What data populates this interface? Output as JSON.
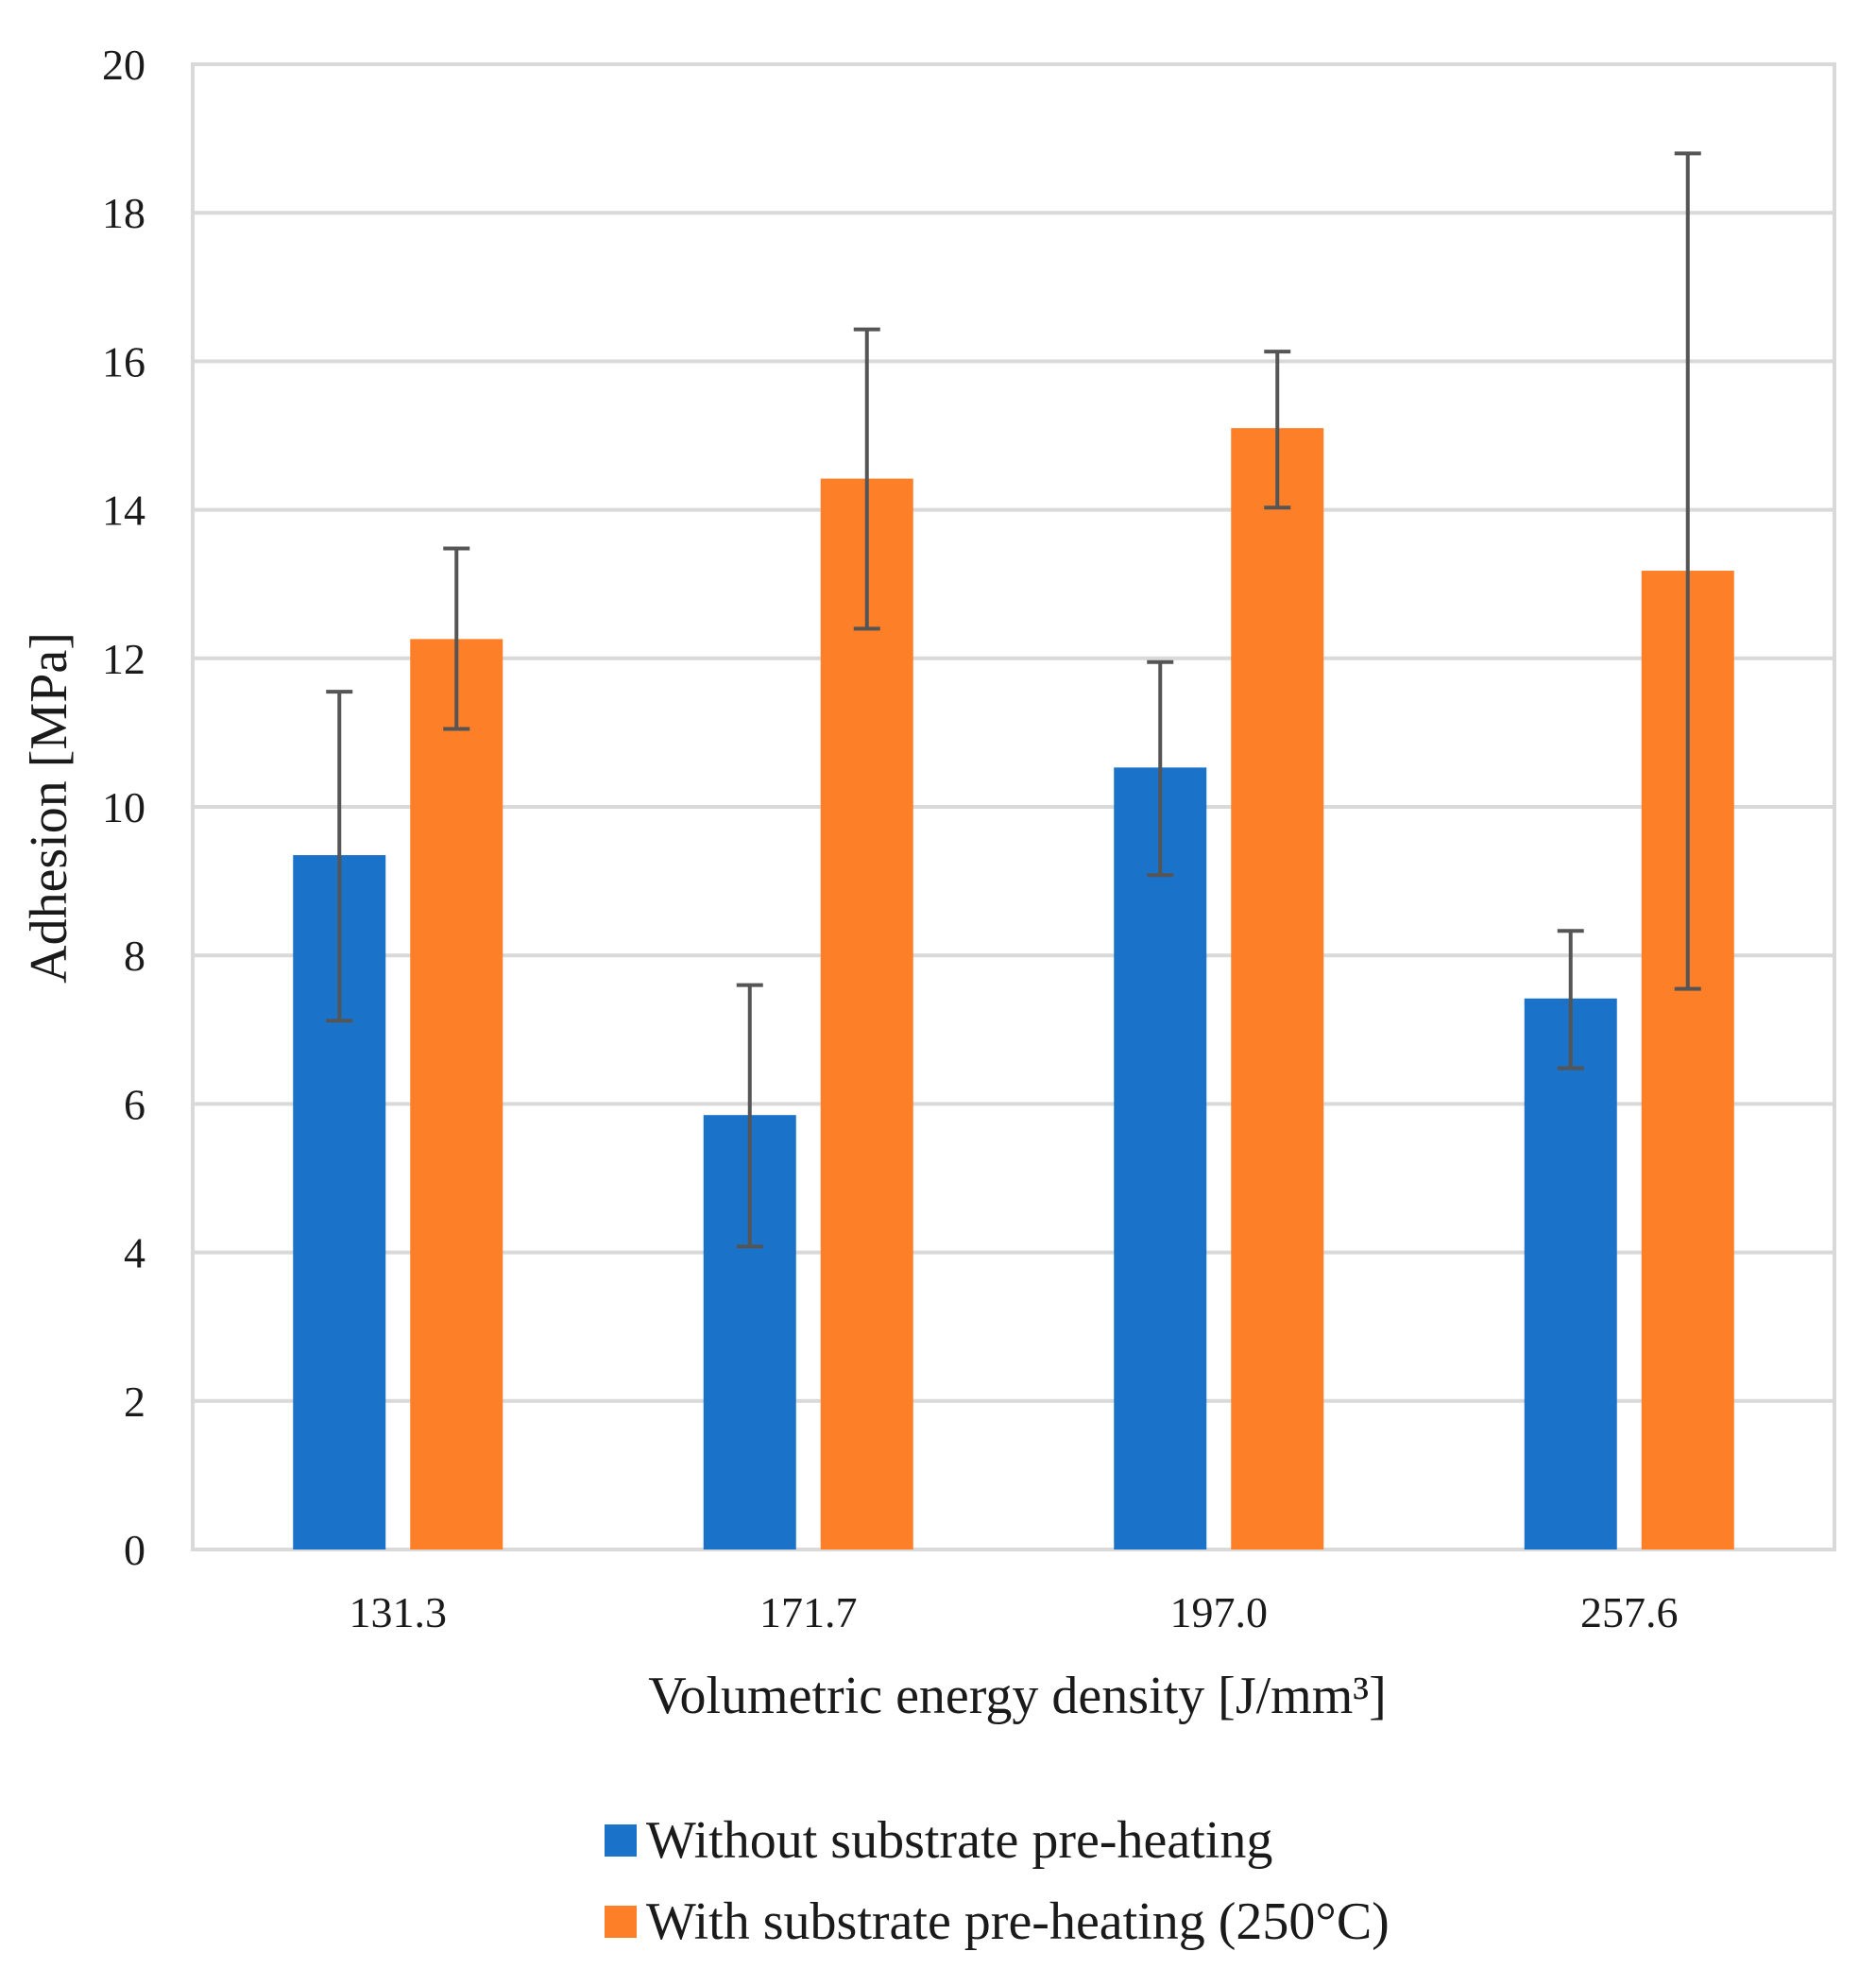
{
  "chart_data": {
    "type": "bar",
    "categories": [
      "131.3",
      "171.7",
      "197.0",
      "257.6"
    ],
    "series": [
      {
        "name": "Without substrate pre-heating",
        "color": "#1a73c8",
        "values": [
          9.35,
          5.85,
          10.53,
          7.42
        ],
        "error_low": [
          7.12,
          4.08,
          9.08,
          6.48
        ],
        "error_high": [
          11.55,
          7.6,
          11.95,
          8.33
        ]
      },
      {
        "name": "With substrate pre-heating (250°C)",
        "color": "#fd7f28",
        "values": [
          12.26,
          14.42,
          15.1,
          13.18
        ],
        "error_low": [
          11.05,
          12.4,
          14.03,
          7.55
        ],
        "error_high": [
          13.48,
          16.43,
          16.13,
          18.8
        ]
      }
    ],
    "y_ticks": [
      "0",
      "2",
      "4",
      "6",
      "8",
      "10",
      "12",
      "14",
      "16",
      "18",
      "20"
    ],
    "ylim": [
      0,
      20
    ],
    "xlabel": "Volumetric energy density [J/mm³]",
    "ylabel": "Adhesion [MPa]",
    "grid": true,
    "legend_position": "bottom"
  }
}
